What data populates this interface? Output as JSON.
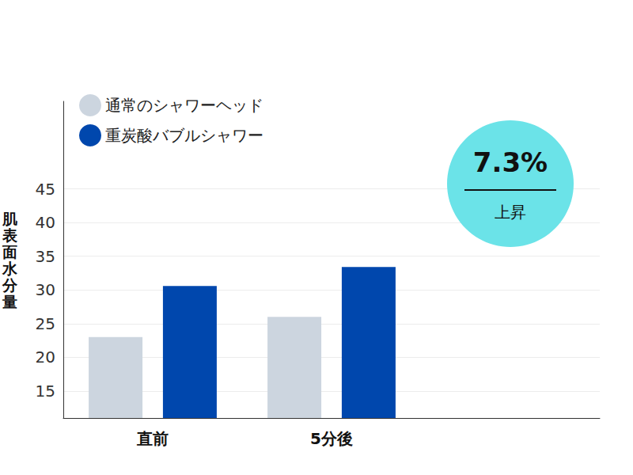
{
  "chart_data": {
    "type": "bar",
    "categories": [
      "直前",
      "5分後",
      null
    ],
    "series": [
      {
        "name": "通常のシャワーヘッド",
        "color": "#ccd5df",
        "values": [
          23,
          26,
          null
        ]
      },
      {
        "name": "重炭酸バブルシャワー",
        "color": "#0047ad",
        "values": [
          30.6,
          33.4,
          null
        ]
      }
    ],
    "y_label": "肌表面水分量",
    "ylim": [
      11,
      58
    ],
    "yticks": [
      15,
      20,
      25,
      30,
      35,
      40,
      45
    ],
    "grid": true,
    "legend": "top-left",
    "annotations": [
      "7.3%",
      "上昇"
    ]
  }
}
